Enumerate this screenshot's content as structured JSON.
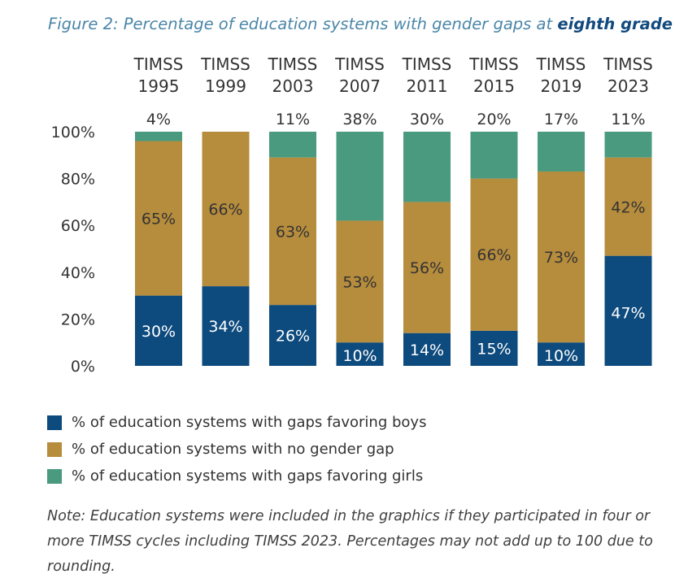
{
  "title_prefix": "Figure 2: Percentage of education systems with gender gaps at ",
  "title_emphasis": "eighth grade",
  "colors": {
    "boys": "#0d4a7d",
    "no_gap": "#b68c3d",
    "girls": "#499a7e",
    "axis_text": "#333333"
  },
  "chart_data": {
    "type": "bar",
    "stacked": true,
    "categories": [
      [
        "TIMSS",
        "1995"
      ],
      [
        "TIMSS",
        "1999"
      ],
      [
        "TIMSS",
        "2003"
      ],
      [
        "TIMSS",
        "2007"
      ],
      [
        "TIMSS",
        "2011"
      ],
      [
        "TIMSS",
        "2015"
      ],
      [
        "TIMSS",
        "2019"
      ],
      [
        "TIMSS",
        "2023"
      ]
    ],
    "series": [
      {
        "name": "% of education systems with gaps favoring boys",
        "key": "boys",
        "values": [
          30,
          34,
          26,
          10,
          14,
          15,
          10,
          47
        ]
      },
      {
        "name": "% of education systems with no gender gap",
        "key": "no_gap",
        "values": [
          65,
          66,
          63,
          53,
          56,
          66,
          73,
          42
        ]
      },
      {
        "name": "% of education systems with gaps favoring girls",
        "key": "girls",
        "values": [
          4,
          0,
          11,
          38,
          30,
          20,
          17,
          11
        ]
      }
    ],
    "top_labels": [
      "4%",
      "",
      "11%",
      "38%",
      "30%",
      "20%",
      "17%",
      "11%"
    ],
    "boys_labels": [
      "30%",
      "34%",
      "26%",
      "10%",
      "14%",
      "15%",
      "10%",
      "47%"
    ],
    "no_gap_labels": [
      "65%",
      "66%",
      "63%",
      "53%",
      "56%",
      "66%",
      "73%",
      "42%"
    ],
    "y_ticks": [
      "0%",
      "20%",
      "40%",
      "60%",
      "80%",
      "100%"
    ],
    "ylim": [
      0,
      100
    ],
    "legend_position": "bottom"
  },
  "legend": [
    {
      "key": "boys",
      "label": "% of education systems with gaps favoring boys"
    },
    {
      "key": "no_gap",
      "label": "% of education systems with no gender gap"
    },
    {
      "key": "girls",
      "label": "% of education systems with gaps favoring girls"
    }
  ],
  "note": "Note: Education systems were included in the graphics if they participated in four or more TIMSS cycles including TIMSS 2023. Percentages may not add up to 100 due to rounding."
}
